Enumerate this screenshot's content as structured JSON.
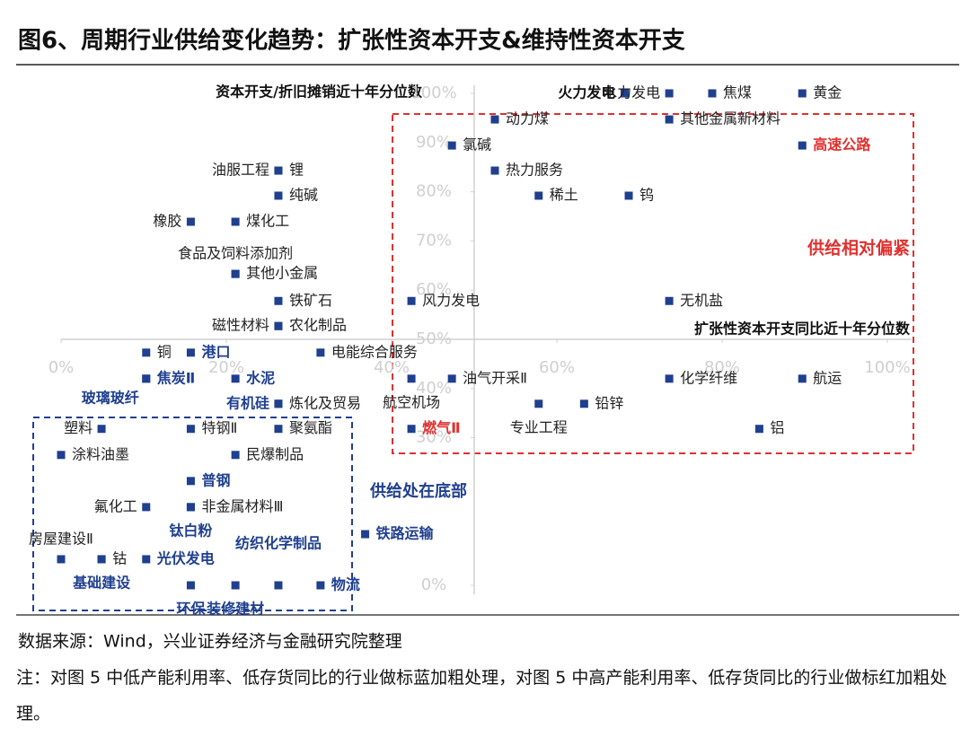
{
  "chart_data": {
    "type": "scatter",
    "title": "图6、周期行业供给变化趋势：扩张性资本开支&维持性资本开支",
    "y_label": "资本开支/折旧摊销近十年分位数",
    "x_label": "扩张性资本开支同比近十年分位数",
    "annotations": [
      {
        "text": "供给相对偏紧",
        "color": "#e0302e"
      },
      {
        "text": "供给处在底部",
        "color": "#1f3f8f"
      }
    ],
    "source": "数据来源：Wind，兴业证券经济与金融研究院整理",
    "note": "注：对图 5 中低产能利用率、低存货同比的行业做标蓝加粗处理，对图 5 中高产能利用率、低存货同比的行业做标红加粗处理。",
    "xlim": [
      0,
      100
    ],
    "ylim": [
      0,
      100
    ],
    "xticks": [
      {
        "value": 0,
        "label": "0%"
      },
      {
        "value": 20,
        "label": "20%"
      },
      {
        "value": 40,
        "label": "40%"
      },
      {
        "value": 60,
        "label": "60%"
      },
      {
        "value": 80,
        "label": "80%"
      },
      {
        "value": 100,
        "label": "100%"
      }
    ],
    "yticks": [
      {
        "value": 0,
        "label": "0%"
      },
      {
        "value": 30,
        "label": "30%"
      },
      {
        "value": 40,
        "label": "40%"
      },
      {
        "value": 50,
        "label": "50%"
      },
      {
        "value": 60,
        "label": "60%"
      },
      {
        "value": 70,
        "label": "70%"
      },
      {
        "value": 80,
        "label": "80%"
      },
      {
        "value": 90,
        "label": "90%"
      },
      {
        "value": 100,
        "label": "100%"
      }
    ],
    "marker_color": "#1f3f8f",
    "label_colors": {
      "normal": "#222222",
      "bold": "#111111",
      "blue": "#1f3f8f",
      "red": "#e0302e"
    },
    "points": [
      {
        "label": "火力发电",
        "x": 68.2,
        "y": 100,
        "style": "bold"
      },
      {
        "label": "水力发电",
        "x": 73.6,
        "y": 100,
        "style": "normal"
      },
      {
        "label": "焦煤",
        "x": 78.8,
        "y": 100,
        "style": "normal"
      },
      {
        "label": "黄金",
        "x": 89.7,
        "y": 100,
        "style": "normal"
      },
      {
        "label": "动力煤",
        "x": 52.5,
        "y": 94.7,
        "style": "normal"
      },
      {
        "label": "其他金属新材料",
        "x": 73.6,
        "y": 94.7,
        "style": "normal"
      },
      {
        "label": "氯碱",
        "x": 47.3,
        "y": 89.4,
        "style": "normal"
      },
      {
        "label": "高速公路",
        "x": 89.7,
        "y": 89.4,
        "style": "red"
      },
      {
        "label": "热力服务",
        "x": 52.5,
        "y": 84.3,
        "style": "normal"
      },
      {
        "label": "稀土",
        "x": 57.8,
        "y": 79.2,
        "style": "normal"
      },
      {
        "label": "钨",
        "x": 68.7,
        "y": 79.2,
        "style": "normal"
      },
      {
        "label": "风力发电",
        "x": 42.4,
        "y": 57.8,
        "style": "normal"
      },
      {
        "label": "无机盐",
        "x": 73.6,
        "y": 57.8,
        "style": "normal"
      },
      {
        "label": "锂",
        "x": 26.3,
        "y": 84.3,
        "style": "normal"
      },
      {
        "label": "油服工程",
        "x": 26.3,
        "y": 84.3,
        "style": "normal"
      },
      {
        "label": "纯碱",
        "x": 26.3,
        "y": 79.2,
        "style": "normal"
      },
      {
        "label": "煤化工",
        "x": 21.1,
        "y": 73.9,
        "style": "normal"
      },
      {
        "label": "橡胶",
        "x": 15.7,
        "y": 73.9,
        "style": "normal"
      },
      {
        "label": "其他小金属",
        "x": 21.1,
        "y": 63.3,
        "style": "normal"
      },
      {
        "label": "食品及饲料添加剂",
        "x": 21.1,
        "y": 63.3,
        "style": "normal"
      },
      {
        "label": "铁矿石",
        "x": 26.3,
        "y": 57.8,
        "style": "normal"
      },
      {
        "label": "农化制品",
        "x": 26.3,
        "y": 52.7,
        "style": "normal"
      },
      {
        "label": "磁性材料",
        "x": 26.3,
        "y": 52.7,
        "style": "normal"
      },
      {
        "label": "铜",
        "x": 10.3,
        "y": 47.3,
        "style": "normal"
      },
      {
        "label": "港口",
        "x": 15.7,
        "y": 47.3,
        "style": "blue"
      },
      {
        "label": "电能综合服务",
        "x": 31.4,
        "y": 47.3,
        "style": "normal"
      },
      {
        "label": "焦炭Ⅱ",
        "x": 10.3,
        "y": 42.0,
        "style": "blue"
      },
      {
        "label": "水泥",
        "x": 21.1,
        "y": 42.0,
        "style": "blue"
      },
      {
        "label": "油气开采Ⅱ",
        "x": 47.3,
        "y": 42.0,
        "style": "normal"
      },
      {
        "label": "航空机场",
        "x": 42.4,
        "y": 42.0,
        "style": "normal"
      },
      {
        "label": "化学纤维",
        "x": 73.6,
        "y": 42.0,
        "style": "normal"
      },
      {
        "label": "航运",
        "x": 89.7,
        "y": 42.0,
        "style": "normal"
      },
      {
        "label": "玻璃玻纤",
        "x": 10.3,
        "y": 42.0,
        "style": "blue"
      },
      {
        "label": "有机硅",
        "x": 26.3,
        "y": 36.9,
        "style": "blue"
      },
      {
        "label": "炼化及贸易",
        "x": 26.3,
        "y": 36.9,
        "style": "normal"
      },
      {
        "label": "铅锌",
        "x": 63.3,
        "y": 36.9,
        "style": "normal"
      },
      {
        "label": "专业工程",
        "x": 57.8,
        "y": 36.9,
        "style": "normal"
      },
      {
        "label": "塑料",
        "x": 4.9,
        "y": 31.8,
        "style": "normal"
      },
      {
        "label": "特钢Ⅱ",
        "x": 15.7,
        "y": 31.8,
        "style": "normal"
      },
      {
        "label": "聚氨酯",
        "x": 26.3,
        "y": 31.8,
        "style": "normal"
      },
      {
        "label": "燃气Ⅱ",
        "x": 42.4,
        "y": 31.8,
        "style": "red"
      },
      {
        "label": "铝",
        "x": 84.5,
        "y": 31.8,
        "style": "normal"
      },
      {
        "label": "涂料油墨",
        "x": 0,
        "y": 26.5,
        "style": "normal"
      },
      {
        "label": "民爆制品",
        "x": 21.1,
        "y": 26.5,
        "style": "normal"
      },
      {
        "label": "普钢",
        "x": 15.7,
        "y": 21.2,
        "style": "blue"
      },
      {
        "label": "氟化工",
        "x": 10.3,
        "y": 15.9,
        "style": "normal"
      },
      {
        "label": "非金属材料Ⅲ",
        "x": 15.7,
        "y": 15.9,
        "style": "normal"
      },
      {
        "label": "钛白粉",
        "x": 15.7,
        "y": 15.9,
        "style": "blue"
      },
      {
        "label": "钴",
        "x": 4.9,
        "y": 5.3,
        "style": "normal"
      },
      {
        "label": "光伏发电",
        "x": 10.3,
        "y": 5.3,
        "style": "blue"
      },
      {
        "label": "房屋建设Ⅱ",
        "x": 0,
        "y": 5.3,
        "style": "normal"
      },
      {
        "label": "铁路运输",
        "x": 36.8,
        "y": 10.4,
        "style": "blue"
      },
      {
        "label": "纺织化学制品",
        "x": 26.3,
        "y": 0,
        "style": "blue"
      },
      {
        "label": "基础建设",
        "x": 4.9,
        "y": 5.3,
        "style": "blue"
      },
      {
        "label": "环保",
        "x": 15.7,
        "y": 0,
        "style": "blue"
      },
      {
        "label": "装修建材",
        "x": 21.1,
        "y": 0,
        "style": "blue"
      },
      {
        "label": "物流",
        "x": 31.4,
        "y": 0,
        "style": "blue"
      }
    ]
  }
}
